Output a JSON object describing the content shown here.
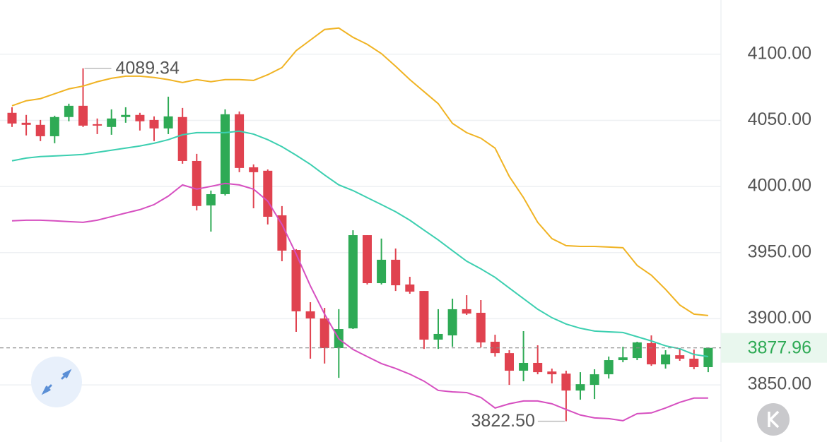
{
  "chart_data": {
    "type": "candlestick",
    "up_color": "#2eaa55",
    "down_color": "#e0424f",
    "open": [
      4055.7,
      4048.2,
      4046.6,
      4038.0,
      4052.5,
      4061.0,
      4047.1,
      4045.0,
      4052.5,
      4054.1,
      4050.3,
      4043.9,
      4052.5,
      4019.3,
      3985.7,
      3994.2,
      4054.6,
      4014.5,
      4011.9,
      3978.2,
      3952.0,
      3905.6,
      3900.2,
      3877.8,
      3892.7,
      3963.2,
      3926.9,
      3944.6,
      3925.9,
      3921.0,
      3884.2,
      3887.4,
      3907.2,
      3904.5,
      3882.6,
      3874.0,
      3860.7,
      3866.6,
      3860.1,
      3858.5,
      3845.7,
      3850.0,
      3858.0,
      3868.7,
      3870.3,
      3881.5,
      3865.5,
      3872.4,
      3869.8,
      3863.4
    ],
    "high": [
      4059.9,
      4054.1,
      4050.3,
      4053.5,
      4062.6,
      4089.34,
      4051.4,
      4058.3,
      4059.9,
      4055.7,
      4053.0,
      4067.9,
      4059.4,
      4024.7,
      3996.9,
      4058.3,
      4056.7,
      4016.7,
      4012.9,
      3985.2,
      3952.6,
      3912.5,
      3908.2,
      3907.2,
      3966.9,
      3963.2,
      3960.6,
      3953.1,
      3931.7,
      3921.0,
      3907.2,
      3915.2,
      3917.8,
      3914.1,
      3887.9,
      3876.2,
      3890.6,
      3879.9,
      3862.3,
      3860.7,
      3859.6,
      3861.8,
      3871.4,
      3878.8,
      3882.6,
      3887.4,
      3876.2,
      3877.8,
      3876.7,
      3878.3
    ],
    "low": [
      4045.0,
      4038.6,
      4034.3,
      4032.7,
      4049.3,
      4045.0,
      4039.6,
      4039.1,
      4048.2,
      4042.3,
      4034.3,
      4039.6,
      4017.2,
      3981.9,
      3965.9,
      3993.2,
      4010.8,
      3983.5,
      3971.3,
      3943.5,
      3890.1,
      3869.8,
      3866.1,
      3855.3,
      3892.2,
      3925.9,
      3925.9,
      3921.0,
      3918.9,
      3877.2,
      3877.2,
      3878.8,
      3902.9,
      3878.3,
      3871.4,
      3850.0,
      3852.7,
      3858.0,
      3851.1,
      3822.5,
      3838.8,
      3839.3,
      3854.8,
      3867.1,
      3868.7,
      3864.4,
      3862.3,
      3868.2,
      3861.8,
      3859.6
    ],
    "close": [
      4047.6,
      4046.6,
      4038.0,
      4052.5,
      4061.0,
      4046.0,
      4046.0,
      4051.4,
      4054.1,
      4049.3,
      4043.9,
      4053.0,
      4019.3,
      3985.2,
      3994.2,
      4054.6,
      4014.0,
      4010.8,
      3977.1,
      3951.5,
      3905.6,
      3900.2,
      3877.8,
      3892.2,
      3963.2,
      3926.9,
      3944.6,
      3925.3,
      3920.5,
      3884.2,
      3888.5,
      3907.2,
      3903.9,
      3882.1,
      3874.0,
      3860.7,
      3866.6,
      3859.6,
      3858.0,
      3845.7,
      3850.5,
      3858.0,
      3868.7,
      3870.8,
      3882.1,
      3865.5,
      3872.9,
      3869.8,
      3863.4,
      3877.96
    ],
    "series": [
      {
        "color": "#f0b323",
        "values": [
          4061.0,
          4064.8,
          4066.4,
          4070.1,
          4073.8,
          4075.9,
          4079.2,
          4081.8,
          4083.4,
          4083.4,
          4082.4,
          4080.8,
          4078.6,
          4080.8,
          4079.2,
          4080.8,
          4080.8,
          4080.2,
          4084.5,
          4089.9,
          4102.7,
          4110.7,
          4118.7,
          4119.8,
          4112.8,
          4107.5,
          4100.5,
          4090.9,
          4080.8,
          4071.7,
          4062.6,
          4047.7,
          4040.7,
          4036.5,
          4029.0,
          4007.6,
          3991.6,
          3972.9,
          3960.6,
          3955.3,
          3954.7,
          3954.7,
          3954.2,
          3953.7,
          3940.3,
          3932.9,
          3922.2,
          3910.4,
          3903.5,
          3902.4
        ]
      },
      {
        "color": "#3ccfb0",
        "values": [
          4019.4,
          4021.5,
          4022.6,
          4023.1,
          4023.6,
          4024.2,
          4025.8,
          4027.4,
          4029.0,
          4030.6,
          4032.7,
          4035.4,
          4039.1,
          4040.7,
          4040.7,
          4040.7,
          4041.8,
          4039.6,
          4035.4,
          4030.1,
          4023.6,
          4016.7,
          4008.7,
          4001.2,
          3996.9,
          3991.6,
          3986.3,
          3980.9,
          3974.5,
          3967.0,
          3959.6,
          3951.5,
          3943.5,
          3937.7,
          3931.3,
          3923.2,
          3915.2,
          3907.2,
          3900.8,
          3896.0,
          3892.8,
          3890.7,
          3890.1,
          3889.6,
          3886.4,
          3883.2,
          3879.5,
          3877.3,
          3873.0,
          3871.4
        ]
      },
      {
        "color": "#d64fc0",
        "values": [
          3974.0,
          3974.5,
          3974.5,
          3974.0,
          3973.4,
          3972.9,
          3974.5,
          3977.2,
          3979.9,
          3982.5,
          3986.3,
          3992.7,
          4001.2,
          3998.0,
          4000.1,
          4002.3,
          4001.2,
          3998.0,
          3988.9,
          3971.3,
          3948.9,
          3924.8,
          3903.5,
          3884.8,
          3876.8,
          3871.4,
          3866.1,
          3862.4,
          3858.1,
          3852.8,
          3845.8,
          3844.7,
          3844.2,
          3840.5,
          3832.5,
          3835.7,
          3837.8,
          3837.8,
          3835.7,
          3831.4,
          3827.2,
          3825.0,
          3824.5,
          3822.9,
          3828.2,
          3828.8,
          3832.5,
          3836.8,
          3840.0,
          3840.0
        ]
      }
    ],
    "ylim": [
      3810,
      4141
    ],
    "yticks": [
      {
        "value": 4100,
        "label": "4100.00"
      },
      {
        "value": 4050,
        "label": "4050.00"
      },
      {
        "value": 4000,
        "label": "4000.00"
      },
      {
        "value": 3950,
        "label": "3950.00"
      },
      {
        "value": 3900,
        "label": "3900.00"
      },
      {
        "value": 3850,
        "label": "3850.00"
      }
    ],
    "grid": true,
    "high_marker": {
      "index": 5,
      "value": 4089.34
    },
    "low_marker": {
      "index": 39,
      "value": 3822.5,
      "label": "3822.50"
    },
    "last_price": {
      "value": 3877.96,
      "color": "#2eaa55"
    }
  }
}
